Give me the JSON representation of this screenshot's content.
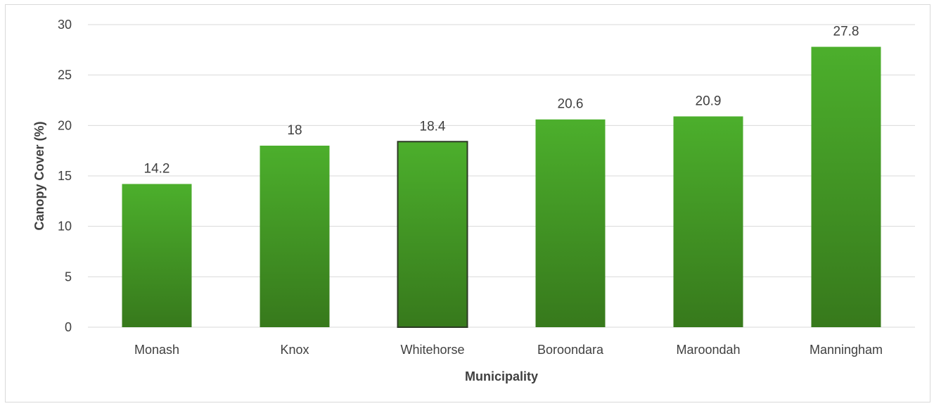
{
  "chart_data": {
    "type": "bar",
    "categories": [
      "Monash",
      "Knox",
      "Whitehorse",
      "Boroondara",
      "Maroondah",
      "Manningham"
    ],
    "values": [
      14.2,
      18,
      18.4,
      20.6,
      20.9,
      27.8
    ],
    "data_labels": [
      "14.2",
      "18",
      "18.4",
      "20.6",
      "20.9",
      "27.8"
    ],
    "xlabel": "Municipality",
    "ylabel": "Canopy Cover (%)",
    "ylim": [
      0,
      30
    ],
    "yticks": [
      0,
      5,
      10,
      15,
      20,
      25,
      30
    ],
    "grid": true,
    "legend": "none",
    "highlighted_category": "Whitehorse",
    "colors": {
      "bar_top": "#4caf2c",
      "bar_bottom": "#37791c",
      "highlight_border": "#2b3a23",
      "gridline": "#d9d9d9",
      "text": "#404040"
    }
  }
}
